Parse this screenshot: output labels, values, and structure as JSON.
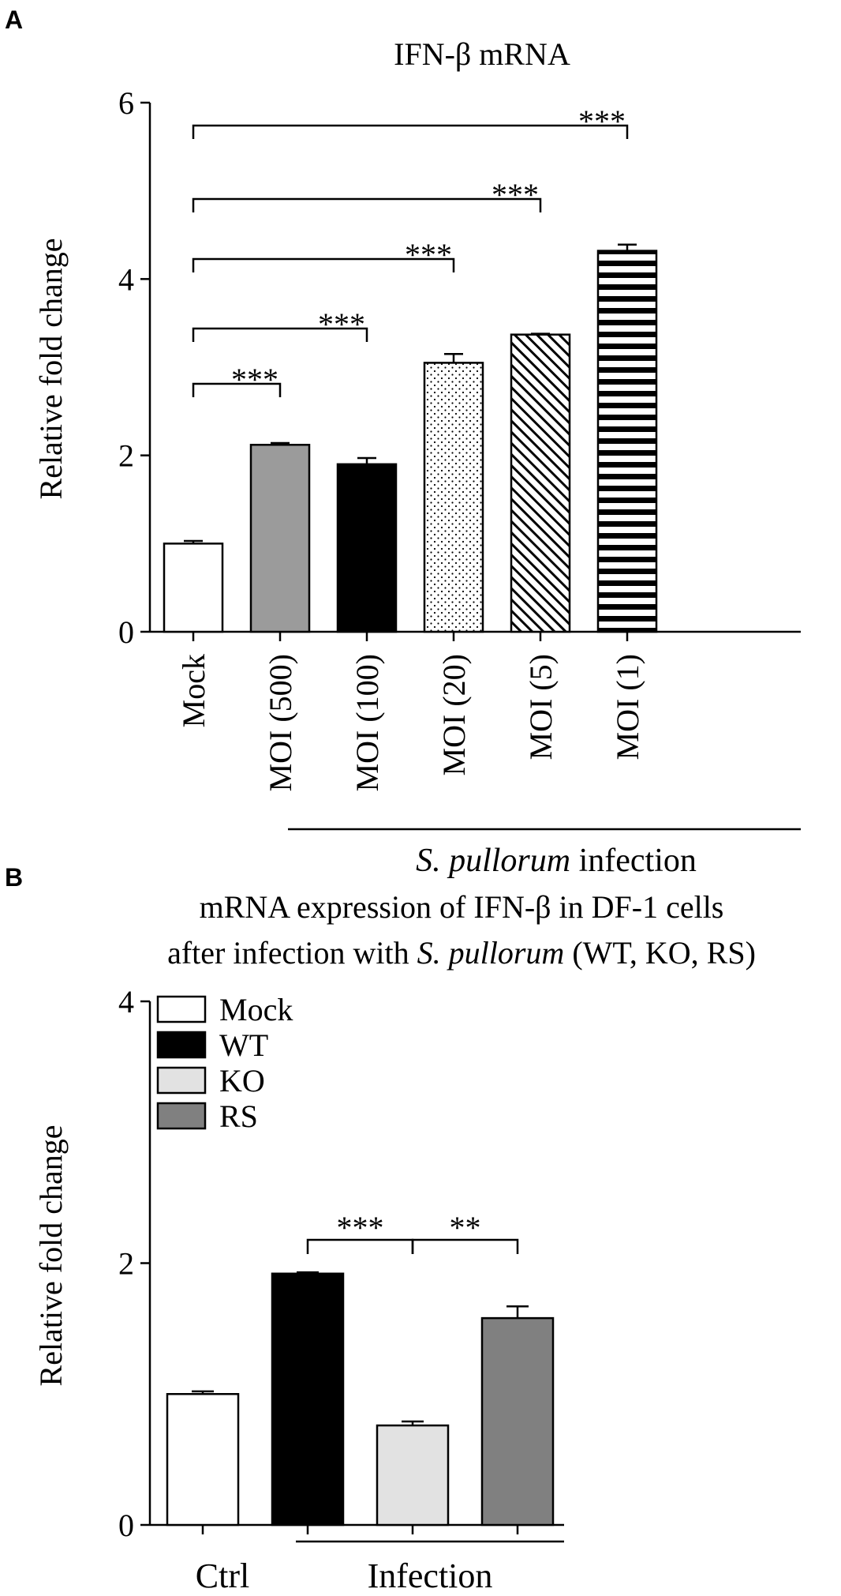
{
  "chart_data": [
    {
      "panel_letter": "A",
      "type": "bar",
      "title": "IFN-β mRNA",
      "ylabel": "Relative fold change",
      "ylim": [
        0,
        6
      ],
      "yticks": [
        "0",
        "2",
        "4",
        "6"
      ],
      "categories": [
        "Mock",
        "MOI (500)",
        "MOI (100)",
        "MOI (20)",
        "MOI (5)",
        "MOI (1)"
      ],
      "values": [
        1.0,
        2.12,
        1.9,
        3.05,
        3.37,
        4.32
      ],
      "errors": [
        0.03,
        0.02,
        0.07,
        0.1,
        0.01,
        0.07
      ],
      "fills": [
        "white",
        "gray",
        "black",
        "dots",
        "diagonal",
        "horizontal"
      ],
      "group_label_italic": "S. pullorum",
      "group_label_rest": " infection",
      "significance": [
        {
          "from": 0,
          "to": 1,
          "label": "***"
        },
        {
          "from": 0,
          "to": 2,
          "label": "***"
        },
        {
          "from": 0,
          "to": 3,
          "label": "***"
        },
        {
          "from": 0,
          "to": 4,
          "label": "***"
        },
        {
          "from": 0,
          "to": 5,
          "label": "***"
        }
      ]
    },
    {
      "panel_letter": "B",
      "type": "bar",
      "title_line1": "mRNA expression of IFN-β  in DF-1 cells",
      "title_line2_pre": "after infection with ",
      "title_line2_italic": "S. pullorum",
      "title_line2_post": " (WT, KO, RS)",
      "ylabel": "Relative fold change",
      "ylim": [
        0,
        4
      ],
      "yticks": [
        "0",
        "2",
        "4"
      ],
      "categories": [
        "Mock",
        "WT",
        "KO",
        "RS"
      ],
      "values": [
        1.0,
        1.92,
        0.76,
        1.58
      ],
      "errors": [
        0.02,
        0.01,
        0.03,
        0.09
      ],
      "colors": [
        "#ffffff",
        "#000000",
        "#e2e2e2",
        "#808080"
      ],
      "legend": [
        "Mock",
        "WT",
        "KO",
        "RS"
      ],
      "legend_position": "top-left",
      "xlabels": [
        "Ctrl",
        "Infection"
      ],
      "significance": [
        {
          "from": 1,
          "to": 2,
          "label": "***"
        },
        {
          "from": 2,
          "to": 3,
          "label": "**"
        }
      ]
    }
  ]
}
